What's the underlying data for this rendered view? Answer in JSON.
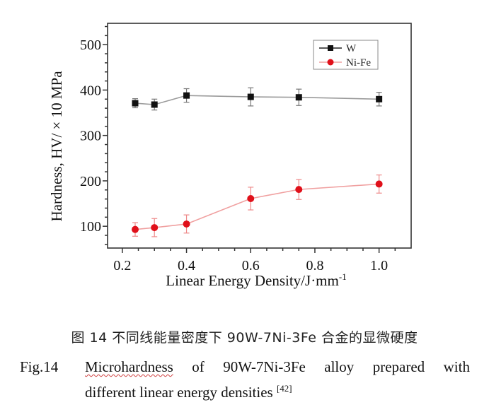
{
  "chart_data": {
    "type": "line",
    "title": "",
    "xlabel": "Linear Energy Density/J·mm",
    "xlabel_superscript": "-1",
    "ylabel": "Hardness, HV/ × 10 MPa",
    "xlim": [
      0.154,
      1.1
    ],
    "ylim": [
      52,
      547
    ],
    "xticks": [
      0.2,
      0.4,
      0.6,
      0.8,
      1.0
    ],
    "xtick_labels": [
      "0.2",
      "0.4",
      "0.6",
      "0.8",
      "1.0"
    ],
    "xminor_step": 0.05,
    "yticks": [
      100,
      200,
      300,
      400,
      500
    ],
    "ytick_labels": [
      "100",
      "200",
      "300",
      "400",
      "500"
    ],
    "yminor_step": 20,
    "grid": false,
    "legend_position": "top-right",
    "x": [
      0.24,
      0.3,
      0.4,
      0.6,
      0.75,
      1.0
    ],
    "series": [
      {
        "name": "W",
        "color": "#111111",
        "line_color": "#9a9a9a",
        "marker": "square",
        "values": [
          371,
          368,
          388,
          385,
          384,
          380
        ],
        "errors": [
          10,
          12,
          15,
          20,
          18,
          15
        ]
      },
      {
        "name": "Ni-Fe",
        "color": "#e0101a",
        "line_color": "#f0a0a0",
        "marker": "circle",
        "values": [
          93,
          97,
          105,
          161,
          181,
          193
        ],
        "errors": [
          15,
          20,
          20,
          25,
          22,
          20
        ]
      }
    ]
  },
  "caption": {
    "chinese": "图  14    不同线能量密度下 90W-7Ni-3Fe 合金的显微硬度",
    "label": "Fig.14",
    "words_line1": [
      "Microhardness",
      "of",
      "90W-7Ni-3Fe",
      "alloy",
      "prepared",
      "with"
    ],
    "line2": "different linear energy densities ",
    "reference": "[42]"
  }
}
